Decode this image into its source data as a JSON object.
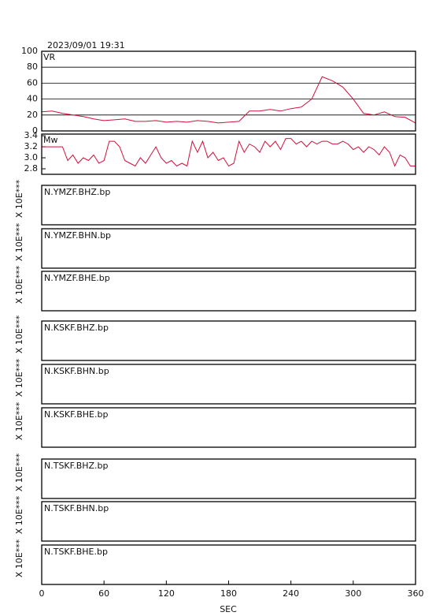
{
  "title": "2023/09/01  19:31",
  "xaxis": {
    "label": "SEC",
    "xlim": [
      0,
      360
    ],
    "xticks": [
      0,
      60,
      120,
      180,
      240,
      300,
      360
    ]
  },
  "chart_data": [
    {
      "type": "line",
      "label": "VR",
      "color": "#d0103c",
      "grid": true,
      "ylim": [
        0,
        100
      ],
      "yticks": [
        0,
        20,
        40,
        60,
        80,
        100
      ],
      "x": [
        0,
        10,
        20,
        30,
        40,
        50,
        60,
        70,
        80,
        90,
        100,
        110,
        120,
        130,
        140,
        150,
        160,
        170,
        180,
        190,
        200,
        210,
        220,
        230,
        240,
        250,
        260,
        270,
        280,
        290,
        300,
        310,
        320,
        330,
        340,
        350,
        360
      ],
      "values": [
        24,
        25,
        22,
        20,
        18,
        15,
        13,
        14,
        15,
        12,
        12,
        13,
        11,
        12,
        11,
        13,
        12,
        10,
        11,
        12,
        25,
        25,
        27,
        25,
        28,
        30,
        40,
        68,
        63,
        55,
        40,
        22,
        20,
        24,
        18,
        17,
        10
      ]
    },
    {
      "type": "line",
      "label": "Mw",
      "color": "#d0103c",
      "grid": false,
      "ylim": [
        2.7,
        3.43
      ],
      "yticks": [
        {
          "value": 2.8,
          "label": "2.8"
        },
        {
          "value": 3,
          "label": "3.0"
        },
        {
          "value": 3.2,
          "label": "3.2"
        },
        {
          "value": 3.4,
          "label": "3.4"
        }
      ],
      "x": [
        0,
        5,
        10,
        15,
        20,
        25,
        30,
        35,
        40,
        45,
        50,
        55,
        60,
        65,
        70,
        75,
        80,
        85,
        90,
        95,
        100,
        105,
        110,
        115,
        120,
        125,
        130,
        135,
        140,
        145,
        150,
        155,
        160,
        165,
        170,
        175,
        180,
        185,
        190,
        195,
        200,
        205,
        210,
        215,
        220,
        225,
        230,
        235,
        240,
        245,
        250,
        255,
        260,
        265,
        270,
        275,
        280,
        285,
        290,
        295,
        300,
        305,
        310,
        315,
        320,
        325,
        330,
        335,
        340,
        345,
        350,
        355,
        360
      ],
      "values": [
        3.2,
        3.2,
        3.2,
        3.2,
        3.2,
        2.95,
        3.05,
        2.9,
        3.0,
        2.95,
        3.05,
        2.9,
        2.95,
        3.3,
        3.3,
        3.2,
        2.95,
        2.9,
        2.85,
        3.0,
        2.9,
        3.05,
        3.2,
        3.0,
        2.9,
        2.95,
        2.85,
        2.9,
        2.85,
        3.3,
        3.1,
        3.3,
        3.0,
        3.1,
        2.95,
        3.0,
        2.85,
        2.9,
        3.3,
        3.1,
        3.25,
        3.2,
        3.1,
        3.3,
        3.2,
        3.3,
        3.15,
        3.35,
        3.35,
        3.25,
        3.3,
        3.2,
        3.3,
        3.25,
        3.3,
        3.3,
        3.25,
        3.25,
        3.3,
        3.25,
        3.15,
        3.2,
        3.1,
        3.2,
        3.15,
        3.05,
        3.2,
        3.1,
        2.85,
        3.05,
        3.0,
        2.85,
        2.85
      ]
    }
  ],
  "traces": [
    {
      "label": "N.YMZF.BHZ.bp",
      "scale": "X 10E***"
    },
    {
      "label": "N.YMZF.BHN.bp",
      "scale": "X 10E***"
    },
    {
      "label": "N.YMZF.BHE.bp",
      "scale": "X 10E***"
    },
    {
      "label": "N.KSKF.BHZ.bp",
      "scale": "X 10E***"
    },
    {
      "label": "N.KSKF.BHN.bp",
      "scale": "X 10E***"
    },
    {
      "label": "N.KSKF.BHE.bp",
      "scale": "X 10E***"
    },
    {
      "label": "N.TSKF.BHZ.bp",
      "scale": "X 10E***"
    },
    {
      "label": "N.TSKF.BHN.bp",
      "scale": "X 10E***"
    },
    {
      "label": "N.TSKF.BHE.bp",
      "scale": "X 10E***"
    }
  ]
}
